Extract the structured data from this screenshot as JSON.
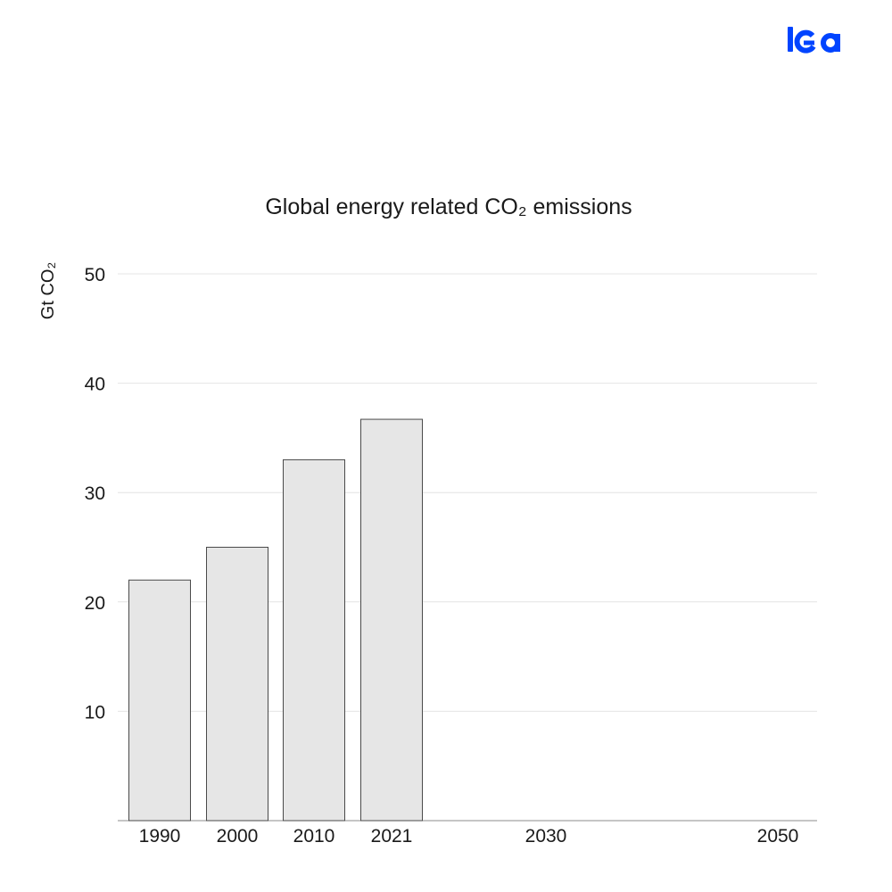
{
  "brand": {
    "logo_text": "iea",
    "logo_color": "#0044ff"
  },
  "chart_data": {
    "type": "bar",
    "title": "Global energy related CO₂ emissions",
    "xlabel": "",
    "ylabel": "Gt CO₂",
    "categories": [
      "1990",
      "2000",
      "2010",
      "2021",
      "2030",
      "2050"
    ],
    "values": [
      22,
      25,
      33,
      36.7,
      null,
      null
    ],
    "ylim": [
      0,
      50
    ],
    "yticks": [
      10,
      20,
      30,
      40,
      50
    ],
    "grid": true,
    "bar_color": "#e6e6e6",
    "bar_edge_color": "#4a4a4a"
  }
}
